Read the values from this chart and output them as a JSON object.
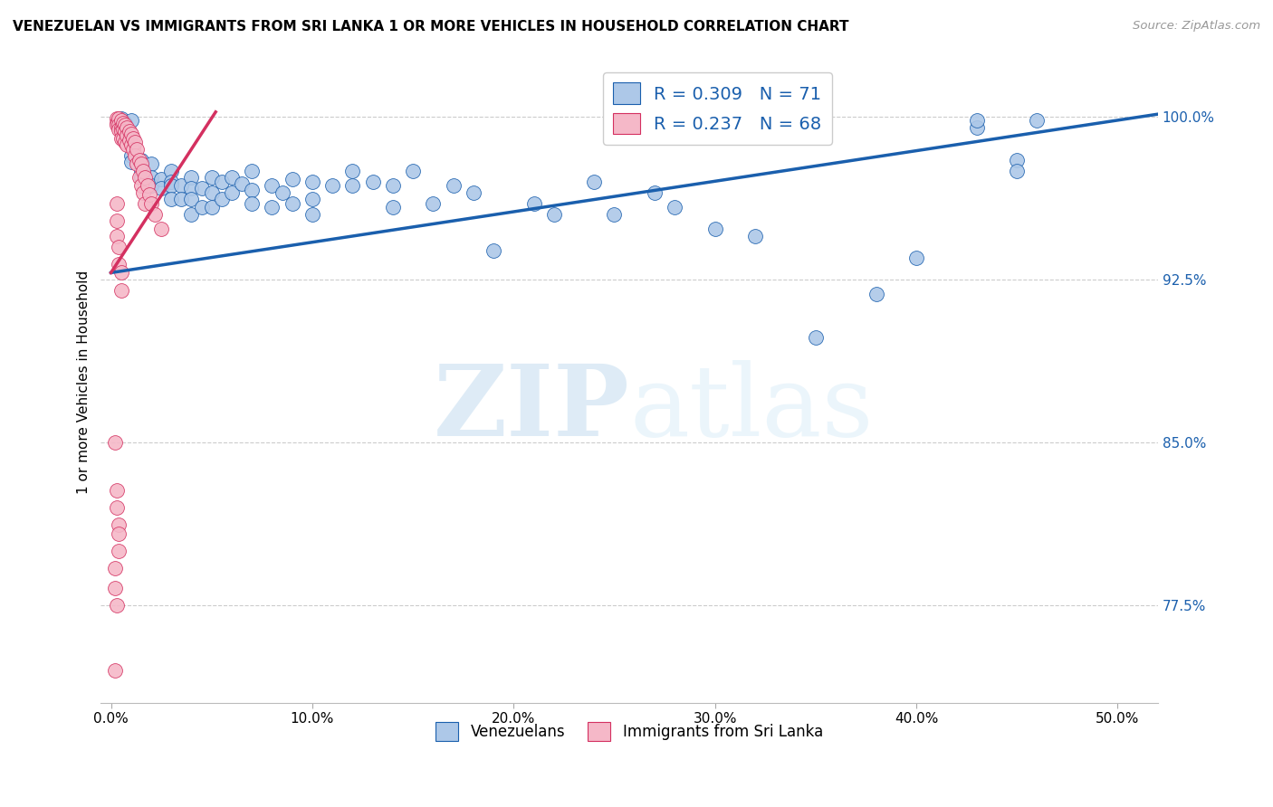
{
  "title": "VENEZUELAN VS IMMIGRANTS FROM SRI LANKA 1 OR MORE VEHICLES IN HOUSEHOLD CORRELATION CHART",
  "source": "Source: ZipAtlas.com",
  "xlabel_ticks": [
    "0.0%",
    "10.0%",
    "20.0%",
    "30.0%",
    "40.0%",
    "50.0%"
  ],
  "xlabel_tick_vals": [
    0.0,
    0.1,
    0.2,
    0.3,
    0.4,
    0.5
  ],
  "ylim": [
    0.73,
    1.025
  ],
  "xlim": [
    -0.005,
    0.52
  ],
  "shown_yticks": [
    0.775,
    0.85,
    0.925,
    1.0
  ],
  "shown_ylabels": [
    "77.5%",
    "85.0%",
    "92.5%",
    "100.0%"
  ],
  "legend_blue_label": "Venezuelans",
  "legend_pink_label": "Immigrants from Sri Lanka",
  "R_blue": 0.309,
  "N_blue": 71,
  "R_pink": 0.237,
  "N_pink": 68,
  "blue_color": "#adc8e8",
  "pink_color": "#f5b8c8",
  "trend_blue_color": "#1a5fad",
  "trend_pink_color": "#d43060",
  "watermark_zip": "ZIP",
  "watermark_atlas": "atlas",
  "blue_trend_x": [
    0.0,
    0.52
  ],
  "blue_trend_y": [
    0.928,
    1.001
  ],
  "pink_trend_x": [
    0.0,
    0.052
  ],
  "pink_trend_y": [
    0.928,
    1.002
  ],
  "blue_scatter": [
    [
      0.005,
      0.999
    ],
    [
      0.007,
      0.997
    ],
    [
      0.01,
      0.998
    ],
    [
      0.01,
      0.982
    ],
    [
      0.01,
      0.979
    ],
    [
      0.015,
      0.98
    ],
    [
      0.015,
      0.975
    ],
    [
      0.015,
      0.972
    ],
    [
      0.02,
      0.978
    ],
    [
      0.02,
      0.972
    ],
    [
      0.02,
      0.968
    ],
    [
      0.025,
      0.971
    ],
    [
      0.025,
      0.967
    ],
    [
      0.03,
      0.975
    ],
    [
      0.03,
      0.97
    ],
    [
      0.03,
      0.968
    ],
    [
      0.03,
      0.962
    ],
    [
      0.035,
      0.968
    ],
    [
      0.035,
      0.962
    ],
    [
      0.04,
      0.972
    ],
    [
      0.04,
      0.967
    ],
    [
      0.04,
      0.962
    ],
    [
      0.04,
      0.955
    ],
    [
      0.045,
      0.967
    ],
    [
      0.045,
      0.958
    ],
    [
      0.05,
      0.972
    ],
    [
      0.05,
      0.965
    ],
    [
      0.05,
      0.958
    ],
    [
      0.055,
      0.97
    ],
    [
      0.055,
      0.962
    ],
    [
      0.06,
      0.972
    ],
    [
      0.06,
      0.965
    ],
    [
      0.065,
      0.969
    ],
    [
      0.07,
      0.975
    ],
    [
      0.07,
      0.966
    ],
    [
      0.07,
      0.96
    ],
    [
      0.08,
      0.968
    ],
    [
      0.08,
      0.958
    ],
    [
      0.085,
      0.965
    ],
    [
      0.09,
      0.971
    ],
    [
      0.09,
      0.96
    ],
    [
      0.1,
      0.97
    ],
    [
      0.1,
      0.962
    ],
    [
      0.1,
      0.955
    ],
    [
      0.11,
      0.968
    ],
    [
      0.12,
      0.975
    ],
    [
      0.12,
      0.968
    ],
    [
      0.13,
      0.97
    ],
    [
      0.14,
      0.968
    ],
    [
      0.14,
      0.958
    ],
    [
      0.15,
      0.975
    ],
    [
      0.16,
      0.96
    ],
    [
      0.17,
      0.968
    ],
    [
      0.18,
      0.965
    ],
    [
      0.19,
      0.938
    ],
    [
      0.21,
      0.96
    ],
    [
      0.22,
      0.955
    ],
    [
      0.24,
      0.97
    ],
    [
      0.25,
      0.955
    ],
    [
      0.27,
      0.965
    ],
    [
      0.28,
      0.958
    ],
    [
      0.3,
      0.948
    ],
    [
      0.32,
      0.945
    ],
    [
      0.35,
      0.898
    ],
    [
      0.38,
      0.918
    ],
    [
      0.4,
      0.935
    ],
    [
      0.43,
      0.995
    ],
    [
      0.43,
      0.998
    ],
    [
      0.45,
      0.98
    ],
    [
      0.45,
      0.975
    ],
    [
      0.46,
      0.998
    ]
  ],
  "pink_scatter": [
    [
      0.003,
      0.999
    ],
    [
      0.003,
      0.997
    ],
    [
      0.003,
      0.996
    ],
    [
      0.004,
      0.999
    ],
    [
      0.004,
      0.996
    ],
    [
      0.004,
      0.994
    ],
    [
      0.005,
      0.998
    ],
    [
      0.005,
      0.995
    ],
    [
      0.005,
      0.993
    ],
    [
      0.005,
      0.99
    ],
    [
      0.006,
      0.997
    ],
    [
      0.006,
      0.994
    ],
    [
      0.006,
      0.99
    ],
    [
      0.007,
      0.996
    ],
    [
      0.007,
      0.993
    ],
    [
      0.007,
      0.988
    ],
    [
      0.008,
      0.995
    ],
    [
      0.008,
      0.991
    ],
    [
      0.008,
      0.987
    ],
    [
      0.009,
      0.993
    ],
    [
      0.009,
      0.989
    ],
    [
      0.01,
      0.992
    ],
    [
      0.01,
      0.987
    ],
    [
      0.011,
      0.99
    ],
    [
      0.011,
      0.985
    ],
    [
      0.012,
      0.988
    ],
    [
      0.012,
      0.982
    ],
    [
      0.013,
      0.985
    ],
    [
      0.013,
      0.978
    ],
    [
      0.014,
      0.98
    ],
    [
      0.014,
      0.972
    ],
    [
      0.015,
      0.978
    ],
    [
      0.015,
      0.968
    ],
    [
      0.016,
      0.975
    ],
    [
      0.016,
      0.965
    ],
    [
      0.017,
      0.972
    ],
    [
      0.017,
      0.96
    ],
    [
      0.018,
      0.968
    ],
    [
      0.019,
      0.964
    ],
    [
      0.02,
      0.96
    ],
    [
      0.022,
      0.955
    ],
    [
      0.025,
      0.948
    ],
    [
      0.003,
      0.96
    ],
    [
      0.003,
      0.952
    ],
    [
      0.003,
      0.945
    ],
    [
      0.004,
      0.94
    ],
    [
      0.004,
      0.932
    ],
    [
      0.005,
      0.928
    ],
    [
      0.005,
      0.92
    ],
    [
      0.002,
      0.85
    ],
    [
      0.003,
      0.828
    ],
    [
      0.003,
      0.82
    ],
    [
      0.004,
      0.812
    ],
    [
      0.004,
      0.808
    ],
    [
      0.004,
      0.8
    ],
    [
      0.002,
      0.792
    ],
    [
      0.002,
      0.783
    ],
    [
      0.003,
      0.775
    ],
    [
      0.002,
      0.745
    ]
  ]
}
